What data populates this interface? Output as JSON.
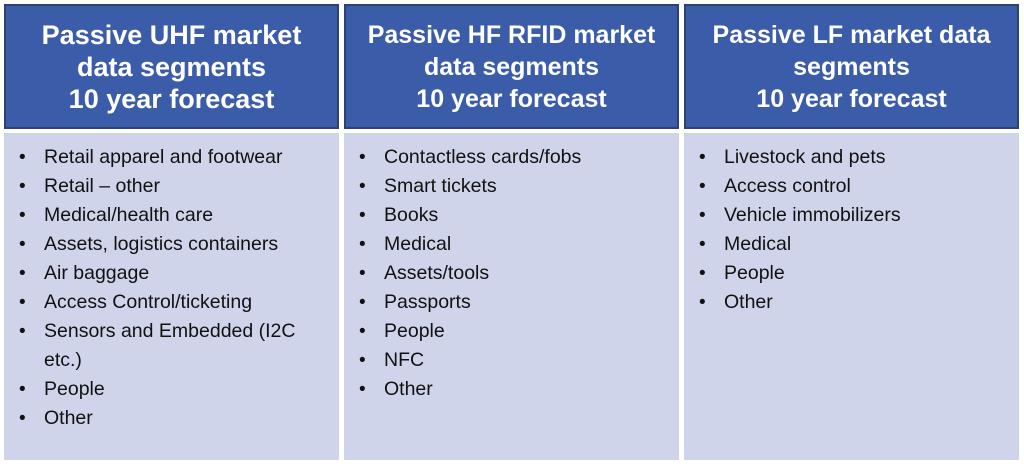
{
  "colors": {
    "header_bg": "#3B5CA9",
    "header_border": "#2A4370",
    "body_bg": "#CFD4EA",
    "page_bg": "#FFFFFF",
    "header_text": "#FFFFFF",
    "body_text": "#111111"
  },
  "columns": [
    {
      "id": "uhf",
      "header_lines": [
        "Passive UHF market",
        "data segments",
        "10 year forecast"
      ],
      "items": [
        "Retail apparel and footwear",
        "Retail – other",
        "Medical/health care",
        "Assets, logistics containers",
        "Air baggage",
        "Access Control/ticketing",
        "Sensors and Embedded (I2C etc.)",
        "People",
        "Other"
      ]
    },
    {
      "id": "hf",
      "header_lines": [
        "Passive HF RFID market",
        "data segments",
        "10 year forecast"
      ],
      "items": [
        "Contactless cards/fobs",
        "Smart tickets",
        "Books",
        "Medical",
        "Assets/tools",
        "Passports",
        "People",
        "NFC",
        "Other"
      ]
    },
    {
      "id": "lf",
      "header_lines": [
        "Passive LF market data",
        "segments",
        "10 year forecast"
      ],
      "items": [
        "Livestock and pets",
        "Access control",
        "Vehicle immobilizers",
        "Medical",
        "People",
        "Other"
      ]
    }
  ]
}
